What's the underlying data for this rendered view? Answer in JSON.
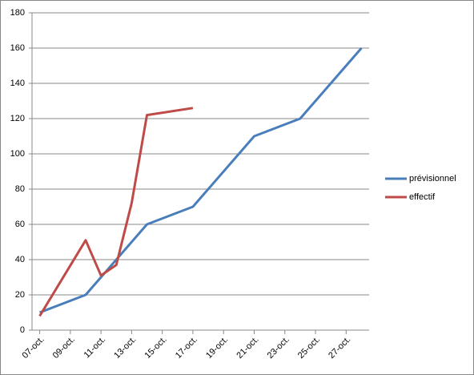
{
  "chart_data": {
    "type": "line",
    "xlim": [
      6.5,
      28.5
    ],
    "xticks": [
      {
        "value": 7,
        "label": "07-oct."
      },
      {
        "value": 9,
        "label": "09-oct."
      },
      {
        "value": 11,
        "label": "11-oct."
      },
      {
        "value": 13,
        "label": "13-oct."
      },
      {
        "value": 15,
        "label": "15-oct."
      },
      {
        "value": 17,
        "label": "17-oct."
      },
      {
        "value": 19,
        "label": "19-oct."
      },
      {
        "value": 21,
        "label": "21-oct."
      },
      {
        "value": 23,
        "label": "23-oct."
      },
      {
        "value": 25,
        "label": "25-oct."
      },
      {
        "value": 27,
        "label": "27-oct."
      }
    ],
    "ylim": [
      0,
      180
    ],
    "yticks": [
      0,
      20,
      40,
      60,
      80,
      100,
      120,
      140,
      160,
      180
    ],
    "grid": true,
    "legend": "right",
    "series": [
      {
        "name": "prévisionnel",
        "color": "#4a7ebb",
        "x": [
          7,
          10,
          14,
          17,
          21,
          24,
          28
        ],
        "values": [
          10,
          20,
          60,
          70,
          110,
          120,
          160
        ]
      },
      {
        "name": "effectif",
        "color": "#be4b48",
        "x": [
          7,
          10,
          11,
          12,
          13,
          14,
          17
        ],
        "values": [
          8,
          51,
          31,
          37,
          72,
          122,
          126
        ]
      }
    ]
  }
}
